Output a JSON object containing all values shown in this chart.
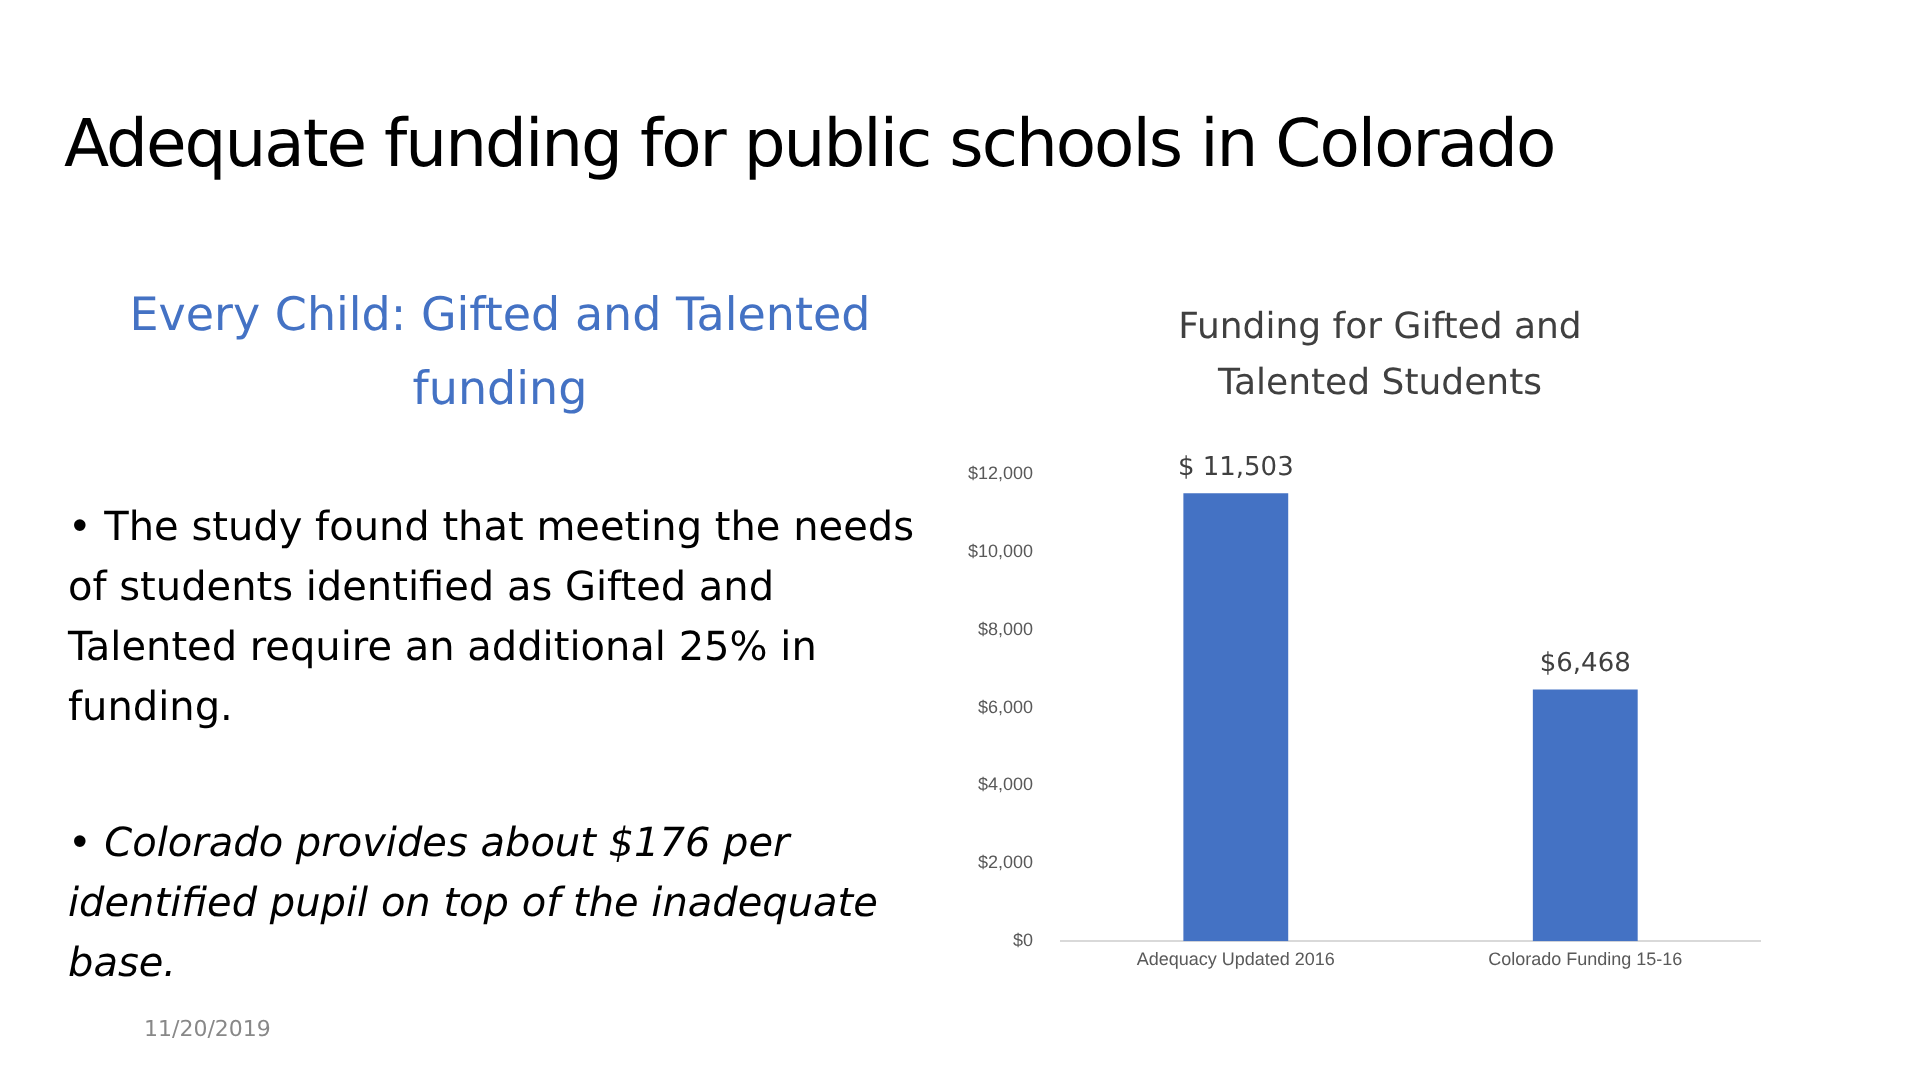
{
  "chart_data": {
    "type": "bar",
    "title": "Adequate funding for public schools in Colorado",
    "subtitle": "Funding for Gifted and Talented Students",
    "categories": [
      "Adequacy Updated 2016",
      "Colorado Funding 15-16"
    ],
    "values": [
      11503,
      6468
    ],
    "color": "#4472c4",
    "value_labels": [
      "$ 11,503",
      "$6,468"
    ],
    "ylim": [
      0,
      12000
    ],
    "yticks": [
      {
        "value": 0,
        "label": "$0"
      },
      {
        "value": 2000,
        "label": "$2,000"
      },
      {
        "value": 4000,
        "label": "$4,000"
      },
      {
        "value": 6000,
        "label": "$6,000"
      },
      {
        "value": 8000,
        "label": "$8,000"
      },
      {
        "value": 10000,
        "label": "$10,000"
      },
      {
        "value": 12000,
        "label": "$12,000"
      }
    ],
    "grid": false,
    "legend": false,
    "annotations": [
      "Every Child: Gifted and Talented funding",
      "• The study found that meeting the needs of students identified as Gifted and Talented require an additional 25% in funding.",
      "• Colorado provides about $176 per identified pupil on top of the inadequate base.",
      "11/20/2019"
    ]
  }
}
